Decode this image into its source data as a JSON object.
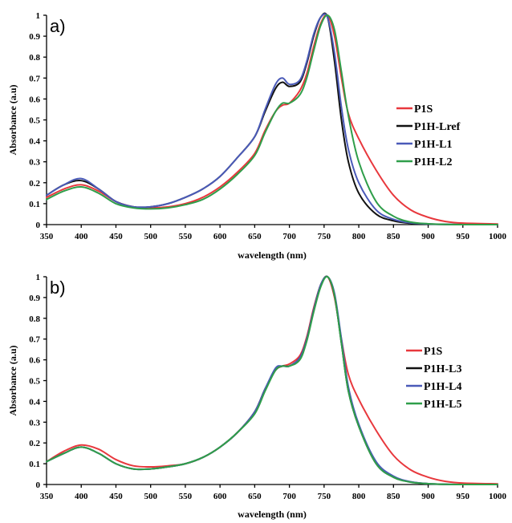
{
  "chart_data": [
    {
      "type": "line",
      "panel_label": "a)",
      "xlabel": "wavelength (nm)",
      "ylabel": "Absorbance (a.u)",
      "xlim": [
        350,
        1000
      ],
      "ylim": [
        0,
        1
      ],
      "xticks": [
        350,
        400,
        450,
        500,
        550,
        600,
        650,
        700,
        750,
        800,
        850,
        900,
        950,
        1000
      ],
      "yticks": [
        0,
        0.1,
        0.2,
        0.3,
        0.4,
        0.5,
        0.6,
        0.7,
        0.8,
        0.9,
        1
      ],
      "ytick_labels": [
        "0",
        "0.1",
        "0.2",
        "0.3",
        "0.4",
        "0.5",
        "0.6",
        "0.7",
        "0.8",
        "0.9",
        "1"
      ],
      "grid": false,
      "legend_position": "right",
      "x": [
        350,
        375,
        400,
        425,
        450,
        475,
        500,
        525,
        550,
        575,
        600,
        625,
        650,
        665,
        680,
        690,
        700,
        715,
        725,
        735,
        745,
        755,
        765,
        775,
        785,
        800,
        825,
        850,
        875,
        900,
        925,
        950,
        1000
      ],
      "series": [
        {
          "name": "P1S",
          "color": "#e8383d",
          "values": [
            0.13,
            0.17,
            0.19,
            0.16,
            0.11,
            0.085,
            0.08,
            0.085,
            0.1,
            0.13,
            0.18,
            0.25,
            0.34,
            0.45,
            0.54,
            0.57,
            0.58,
            0.64,
            0.72,
            0.85,
            0.96,
            1.0,
            0.9,
            0.7,
            0.53,
            0.41,
            0.26,
            0.14,
            0.07,
            0.035,
            0.015,
            0.007,
            0.003
          ]
        },
        {
          "name": "P1H-Lref",
          "color": "#111111",
          "values": [
            0.14,
            0.19,
            0.21,
            0.17,
            0.11,
            0.085,
            0.085,
            0.1,
            0.13,
            0.17,
            0.23,
            0.32,
            0.42,
            0.54,
            0.65,
            0.68,
            0.66,
            0.68,
            0.77,
            0.9,
            0.99,
            0.99,
            0.78,
            0.5,
            0.3,
            0.15,
            0.05,
            0.018,
            0.006,
            0.003,
            0.001,
            0.0,
            0.0
          ]
        },
        {
          "name": "P1H-L1",
          "color": "#4a5ab8",
          "values": [
            0.14,
            0.19,
            0.22,
            0.17,
            0.11,
            0.085,
            0.085,
            0.1,
            0.13,
            0.17,
            0.23,
            0.32,
            0.42,
            0.55,
            0.67,
            0.7,
            0.67,
            0.69,
            0.78,
            0.91,
            0.99,
            0.99,
            0.82,
            0.56,
            0.36,
            0.2,
            0.07,
            0.025,
            0.008,
            0.003,
            0.001,
            0.0,
            0.0
          ]
        },
        {
          "name": "P1H-L2",
          "color": "#2f9e4a",
          "values": [
            0.12,
            0.16,
            0.18,
            0.15,
            0.1,
            0.08,
            0.075,
            0.08,
            0.095,
            0.12,
            0.17,
            0.24,
            0.33,
            0.44,
            0.54,
            0.58,
            0.58,
            0.62,
            0.7,
            0.83,
            0.95,
            1.0,
            0.93,
            0.73,
            0.52,
            0.3,
            0.11,
            0.04,
            0.012,
            0.004,
            0.001,
            0.0,
            0.0
          ]
        }
      ]
    },
    {
      "type": "line",
      "panel_label": "b)",
      "xlabel": "wavelength (nm)",
      "ylabel": "Absorbance (a.u)",
      "xlim": [
        350,
        1000
      ],
      "ylim": [
        0,
        1
      ],
      "xticks": [
        350,
        400,
        450,
        500,
        550,
        600,
        650,
        700,
        750,
        800,
        850,
        900,
        950,
        1000
      ],
      "yticks": [
        0,
        0.1,
        0.2,
        0.3,
        0.4,
        0.5,
        0.6,
        0.7,
        0.8,
        0.9,
        1
      ],
      "ytick_labels": [
        "0",
        "0.1",
        "0.2",
        "0.3",
        "0.4",
        "0.5",
        "0.6",
        "0.7",
        "0.8",
        "0.9",
        "1"
      ],
      "grid": false,
      "legend_position": "right",
      "x": [
        350,
        375,
        400,
        425,
        450,
        475,
        500,
        525,
        550,
        575,
        600,
        625,
        650,
        665,
        680,
        690,
        700,
        715,
        725,
        735,
        745,
        755,
        765,
        775,
        785,
        800,
        825,
        850,
        875,
        900,
        925,
        950,
        1000
      ],
      "series": [
        {
          "name": "P1S",
          "color": "#e8383d",
          "values": [
            0.11,
            0.16,
            0.19,
            0.17,
            0.12,
            0.09,
            0.085,
            0.09,
            0.1,
            0.13,
            0.18,
            0.25,
            0.35,
            0.46,
            0.55,
            0.57,
            0.58,
            0.62,
            0.71,
            0.85,
            0.96,
            1.0,
            0.9,
            0.7,
            0.53,
            0.41,
            0.26,
            0.14,
            0.07,
            0.035,
            0.015,
            0.007,
            0.003
          ]
        },
        {
          "name": "P1H-L3",
          "color": "#111111",
          "values": [
            0.11,
            0.15,
            0.18,
            0.15,
            0.1,
            0.075,
            0.075,
            0.085,
            0.1,
            0.13,
            0.18,
            0.25,
            0.35,
            0.46,
            0.55,
            0.57,
            0.57,
            0.61,
            0.7,
            0.84,
            0.96,
            1.0,
            0.91,
            0.68,
            0.45,
            0.28,
            0.1,
            0.035,
            0.012,
            0.004,
            0.001,
            0.0,
            0.0
          ]
        },
        {
          "name": "P1H-L4",
          "color": "#4a5ab8",
          "values": [
            0.11,
            0.15,
            0.18,
            0.15,
            0.1,
            0.075,
            0.075,
            0.085,
            0.1,
            0.13,
            0.18,
            0.25,
            0.35,
            0.46,
            0.56,
            0.57,
            0.57,
            0.61,
            0.7,
            0.84,
            0.96,
            1.0,
            0.92,
            0.7,
            0.47,
            0.29,
            0.11,
            0.04,
            0.013,
            0.004,
            0.001,
            0.0,
            0.0
          ]
        },
        {
          "name": "P1H-L5",
          "color": "#2f9e4a",
          "values": [
            0.11,
            0.15,
            0.18,
            0.15,
            0.1,
            0.075,
            0.075,
            0.085,
            0.1,
            0.13,
            0.18,
            0.25,
            0.34,
            0.45,
            0.55,
            0.57,
            0.57,
            0.6,
            0.69,
            0.83,
            0.95,
            1.0,
            0.91,
            0.68,
            0.45,
            0.28,
            0.1,
            0.035,
            0.011,
            0.004,
            0.001,
            0.0,
            0.0
          ]
        }
      ]
    }
  ]
}
